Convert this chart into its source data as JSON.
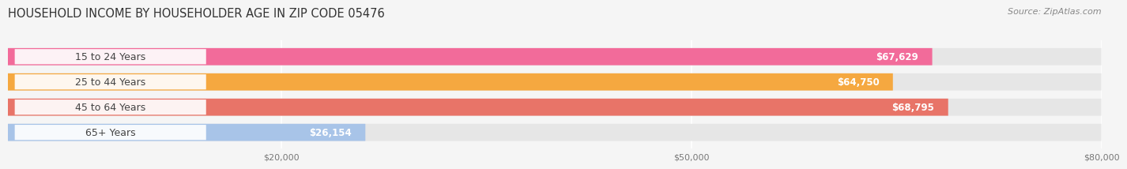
{
  "title": "HOUSEHOLD INCOME BY HOUSEHOLDER AGE IN ZIP CODE 05476",
  "source": "Source: ZipAtlas.com",
  "categories": [
    "15 to 24 Years",
    "25 to 44 Years",
    "45 to 64 Years",
    "65+ Years"
  ],
  "values": [
    67629,
    64750,
    68795,
    26154
  ],
  "bar_colors": [
    "#f26b9a",
    "#f5a840",
    "#e87468",
    "#a8c4e8"
  ],
  "bar_labels": [
    "$67,629",
    "$64,750",
    "$68,795",
    "$26,154"
  ],
  "xlim": [
    0,
    80000
  ],
  "xticks": [
    20000,
    50000,
    80000
  ],
  "xtick_labels": [
    "$20,000",
    "$50,000",
    "$80,000"
  ],
  "background_color": "#f5f5f5",
  "bar_bg_color": "#e6e6e6",
  "title_fontsize": 10.5,
  "source_fontsize": 8,
  "label_fontsize": 8.5,
  "category_fontsize": 9
}
